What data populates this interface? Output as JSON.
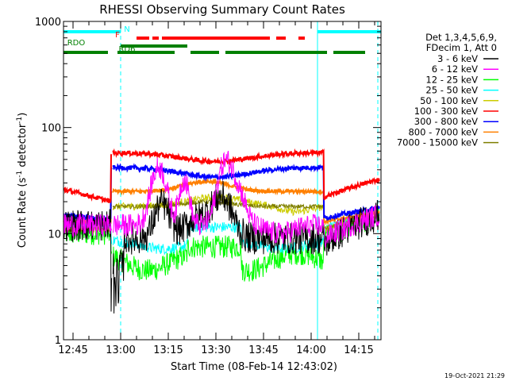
{
  "chart_data": {
    "type": "line",
    "title": "RHESSI Observing Summary Count Rates",
    "xlabel": "Start Time (08-Feb-14 12:43:02)",
    "ylabel_main": "Count Rate (s",
    "ylabel_sup1": "-1",
    "ylabel_mid": " detector",
    "ylabel_sup2": "-1",
    "ylabel_end": ")",
    "y_scale": "log",
    "ylim": [
      1,
      1000
    ],
    "xlim_minutes": [
      -3,
      97
    ],
    "x_ticks": [
      {
        "m": 0,
        "label": "12:45"
      },
      {
        "m": 15,
        "label": "13:00"
      },
      {
        "m": 30,
        "label": "13:15"
      },
      {
        "m": 45,
        "label": "13:30"
      },
      {
        "m": 60,
        "label": "13:45"
      },
      {
        "m": 75,
        "label": "14:00"
      },
      {
        "m": 90,
        "label": "14:15"
      }
    ],
    "y_ticks": [
      {
        "v": 1,
        "label": "1"
      },
      {
        "v": 10,
        "label": "10"
      },
      {
        "v": 100,
        "label": "100"
      },
      {
        "v": 1000,
        "label": "1000"
      }
    ],
    "legend_header": [
      "Det 1,3,4,5,6,9,",
      "FDecim 1, Att 0"
    ],
    "series": [
      {
        "name": "3 - 6 keV",
        "color": "#000000"
      },
      {
        "name": "6 - 12 keV",
        "color": "#ff00ff"
      },
      {
        "name": "12 - 25 keV",
        "color": "#00ff00"
      },
      {
        "name": "25 - 50 keV",
        "color": "#00ffff"
      },
      {
        "name": "50 - 100 keV",
        "color": "#cccc00"
      },
      {
        "name": "100 - 300 keV",
        "color": "#ff0000"
      },
      {
        "name": "300 - 800 keV",
        "color": "#0000ff"
      },
      {
        "name": "800 - 7000 keV",
        "color": "#ff8000"
      },
      {
        "name": "7000 - 15000 keV",
        "color": "#7f7f00"
      }
    ],
    "flags": [
      {
        "label": "N",
        "color": "#00ffff",
        "segments": [
          [
            -3,
            15
          ],
          [
            77,
            97
          ]
        ]
      },
      {
        "label": "F",
        "color": "#ff0000",
        "segments": [
          [
            20,
            24
          ],
          [
            25,
            27
          ],
          [
            28,
            62
          ],
          [
            64,
            67
          ],
          [
            71,
            73
          ]
        ]
      },
      {
        "label": "RDO",
        "color": "#008000",
        "segments": [
          [
            15,
            36
          ]
        ]
      },
      {
        "label": "RD6",
        "color": "#008000",
        "segments": [
          [
            -3,
            11
          ],
          [
            14,
            32
          ],
          [
            37,
            46
          ],
          [
            48,
            80
          ],
          [
            82,
            92
          ]
        ]
      }
    ],
    "day_night_boundaries_minutes": [
      -3,
      15,
      77,
      96
    ]
  },
  "footer": {
    "date": "19-Oct-2021 21:29"
  }
}
